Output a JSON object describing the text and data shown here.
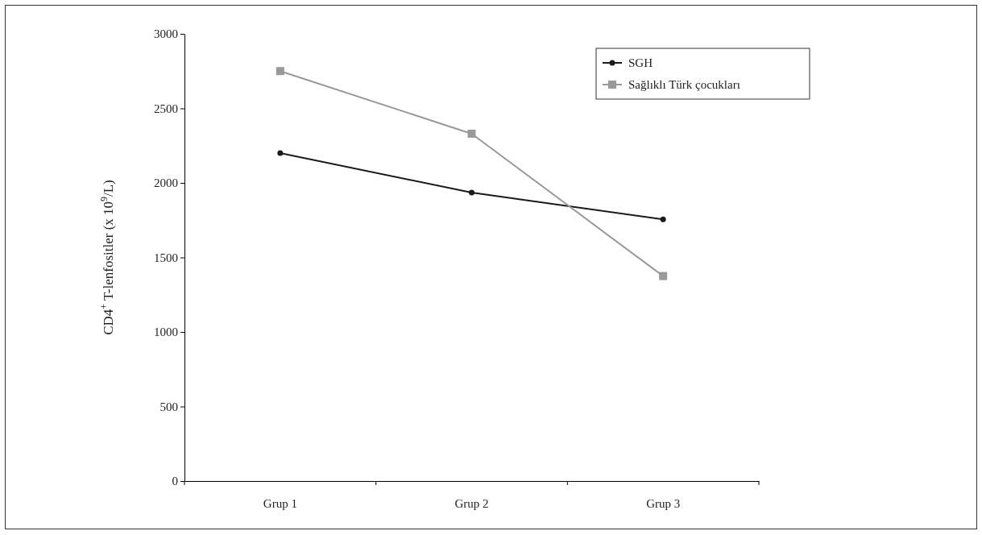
{
  "chart_data": {
    "type": "line",
    "ylabel": "CD4$^{+}$ T-lenfositler (x 10$^{9}$/L)",
    "categories": [
      "Grup 1",
      "Grup 2",
      "Grup 3"
    ],
    "series": [
      {
        "name": "SGH",
        "color": "#1a1a1a",
        "marker": "circle",
        "values": [
          2200,
          1935,
          1755
        ]
      },
      {
        "name": "Sağlıklı Türk çocukları",
        "color": "#999999",
        "marker": "square",
        "values": [
          2750,
          2330,
          1375
        ]
      }
    ],
    "ylim": [
      0,
      3000
    ],
    "yticks": [
      0,
      500,
      1000,
      1500,
      2000,
      2500,
      3000
    ],
    "grid": false,
    "legend": "top right"
  }
}
